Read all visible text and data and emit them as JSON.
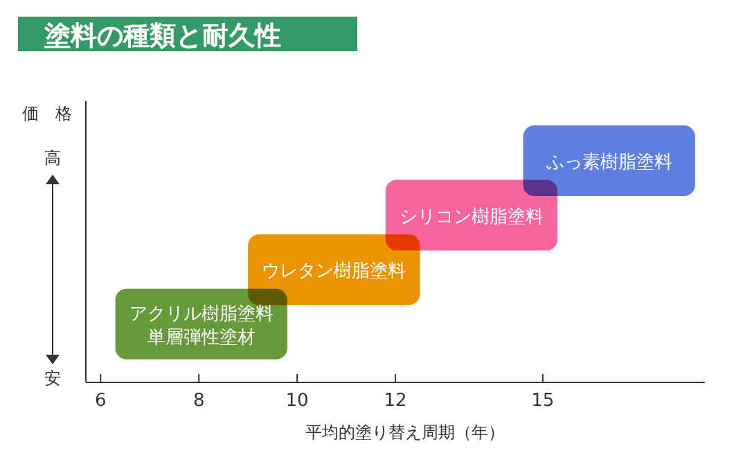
{
  "chart_data": {
    "type": "bar",
    "orientation": "horizontal",
    "title": "塗料の種類と耐久性",
    "xlabel": "平均的塗り替え周期（年）",
    "ylabel": "価　格",
    "annotations": [
      "高",
      "安"
    ],
    "categories": [
      "ふっ素樹脂塗料",
      "シリコン樹脂塗料",
      "ウレタン樹脂塗料",
      "アクリル樹脂塗料単層弾性塗材"
    ],
    "base": [
      14.6,
      11.8,
      9.0,
      6.3
    ],
    "values": [
      3.5,
      3.5,
      3.5,
      3.5
    ],
    "colors": [
      "#5f7fe0",
      "#f7649c",
      "#ec9400",
      "#66993a"
    ],
    "xlim": [
      5.7,
      18.3
    ],
    "xticks": [
      6,
      8,
      10,
      12,
      15
    ],
    "tick_labels": "x",
    "grid": false
  }
}
